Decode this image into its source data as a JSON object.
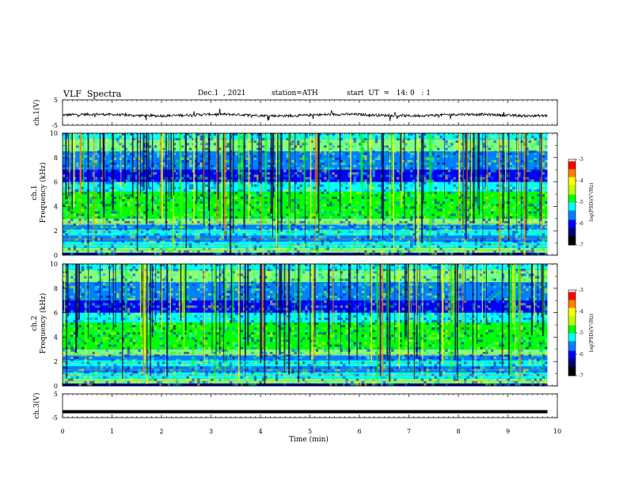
{
  "header": {
    "title": "VLF  Spectra",
    "date": "Dec.1  , 2021",
    "station": "station=ATH",
    "start": "start  UT  =   14: 0   : 1"
  },
  "colors": {
    "jet": [
      "#000080",
      "#0000ff",
      "#0080ff",
      "#00ffff",
      "#80ff80",
      "#00ff00",
      "#ffff00",
      "#ff8000",
      "#ff0000",
      "#ffffff"
    ]
  },
  "chart_data": [
    {
      "type": "line",
      "name": "ch1-waveform",
      "ylabel": "ch.1(V)",
      "yticks": [
        "5",
        "-5"
      ],
      "ylim": [
        -5,
        5
      ],
      "xlim": [
        0,
        10
      ],
      "x_end": 9.8,
      "trace_level": -1.0
    },
    {
      "type": "heatmap",
      "name": "ch1-spectrogram",
      "ylabel": "ch.1\nFrequency (kHz)",
      "yticks": [
        "0",
        "2",
        "4",
        "6",
        "8",
        "10"
      ],
      "ylim": [
        0,
        10
      ],
      "xlim": [
        0,
        10
      ],
      "x_end": 9.8,
      "colorbar": {
        "label": "log(PSD)(V²/Hz)",
        "ticks": [
          "-3",
          "-4",
          "-5",
          "-6",
          "-7"
        ],
        "range": [
          -7,
          -3
        ]
      }
    },
    {
      "type": "heatmap",
      "name": "ch2-spectrogram",
      "ylabel": "ch.2\nFrequency (kHz)",
      "yticks": [
        "0",
        "2",
        "4",
        "6",
        "8",
        "10"
      ],
      "ylim": [
        0,
        10
      ],
      "xlim": [
        0,
        10
      ],
      "x_end": 9.8,
      "colorbar": {
        "label": "log(PSD)(V²/Hz)",
        "ticks": [
          "-3",
          "-4",
          "-5",
          "-6",
          "-7"
        ],
        "range": [
          -7,
          -3
        ]
      }
    },
    {
      "type": "line",
      "name": "ch3-waveform",
      "ylabel": "ch.3(V)",
      "yticks": [
        "5",
        "-5"
      ],
      "ylim": [
        -5,
        5
      ],
      "xlim": [
        0,
        10
      ],
      "x_end": 9.8,
      "trace_level": -2.5,
      "xlabel": "Time  (min)",
      "xticks": [
        "0",
        "1",
        "2",
        "3",
        "4",
        "5",
        "6",
        "7",
        "8",
        "9",
        "10"
      ]
    }
  ]
}
